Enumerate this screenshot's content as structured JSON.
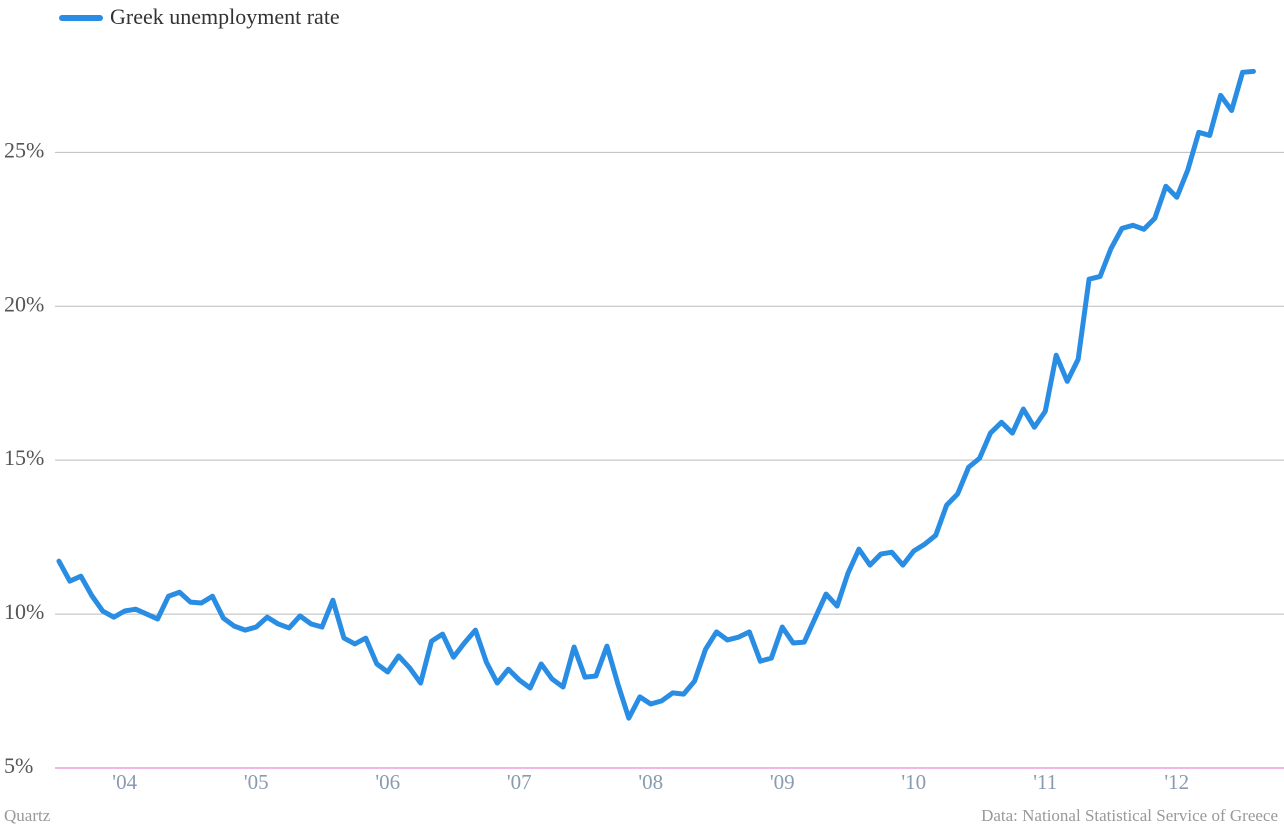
{
  "chart_data": {
    "type": "line",
    "series": [
      {
        "name": "Greek unemployment rate",
        "color": "#2a8de4",
        "values": [
          11.72,
          11.07,
          11.23,
          10.6,
          10.1,
          9.9,
          10.1,
          10.16,
          10.0,
          9.84,
          10.58,
          10.71,
          10.39,
          10.36,
          10.58,
          9.87,
          9.61,
          9.48,
          9.58,
          9.9,
          9.68,
          9.55,
          9.94,
          9.68,
          9.58,
          10.45,
          9.22,
          9.03,
          9.22,
          8.38,
          8.12,
          8.64,
          8.25,
          7.76,
          9.12,
          9.35,
          8.6,
          9.06,
          9.48,
          8.44,
          7.76,
          8.21,
          7.86,
          7.6,
          8.38,
          7.89,
          7.63,
          8.93,
          7.95,
          7.99,
          8.96,
          7.73,
          6.62,
          7.31,
          7.08,
          7.18,
          7.44,
          7.4,
          7.82,
          8.86,
          9.42,
          9.16,
          9.25,
          9.42,
          8.47,
          8.57,
          9.58,
          9.06,
          9.09,
          9.87,
          10.65,
          10.26,
          11.33,
          12.11,
          11.59,
          11.95,
          12.01,
          11.59,
          12.05,
          12.27,
          12.56,
          13.54,
          13.9,
          14.77,
          15.06,
          15.88,
          16.23,
          15.88,
          16.66,
          16.07,
          16.59,
          18.41,
          17.56,
          18.28,
          20.88,
          20.97,
          21.88,
          22.53,
          22.63,
          22.5,
          22.86,
          23.9,
          23.54,
          24.42,
          25.65,
          25.55,
          26.85,
          26.36,
          27.6,
          27.63
        ]
      }
    ],
    "x": [
      2004,
      2004.083,
      2004.167,
      2004.25,
      2004.333,
      2004.417,
      2004.5,
      2004.583,
      2004.667,
      2004.75,
      2004.833,
      2004.917,
      2005,
      2005.083,
      2005.167,
      2005.25,
      2005.333,
      2005.417,
      2005.5,
      2005.583,
      2005.667,
      2005.75,
      2005.833,
      2005.917,
      2006,
      2006.083,
      2006.167,
      2006.25,
      2006.333,
      2006.417,
      2006.5,
      2006.583,
      2006.667,
      2006.75,
      2006.833,
      2006.917,
      2007,
      2007.083,
      2007.167,
      2007.25,
      2007.333,
      2007.417,
      2007.5,
      2007.583,
      2007.667,
      2007.75,
      2007.833,
      2007.917,
      2008,
      2008.083,
      2008.167,
      2008.25,
      2008.333,
      2008.417,
      2008.5,
      2008.583,
      2008.667,
      2008.75,
      2008.833,
      2008.917,
      2009,
      2009.083,
      2009.167,
      2009.25,
      2009.333,
      2009.417,
      2009.5,
      2009.583,
      2009.667,
      2009.75,
      2009.833,
      2009.917,
      2010,
      2010.083,
      2010.167,
      2010.25,
      2010.333,
      2010.417,
      2010.5,
      2010.583,
      2010.667,
      2010.75,
      2010.833,
      2010.917,
      2011,
      2011.083,
      2011.167,
      2011.25,
      2011.333,
      2011.417,
      2011.5,
      2011.583,
      2011.667,
      2011.75,
      2011.833,
      2011.917,
      2012,
      2012.083,
      2012.167,
      2012.25,
      2012.333,
      2012.417,
      2012.5,
      2012.583,
      2012.667,
      2012.75,
      2012.833,
      2012.917,
      2013,
      2013.083
    ],
    "xlim": [
      2003.97,
      2013.3
    ],
    "xticks": [
      {
        "value": 2004,
        "label": "'04"
      },
      {
        "value": 2005,
        "label": "'05"
      },
      {
        "value": 2006,
        "label": "'06"
      },
      {
        "value": 2007,
        "label": "'07"
      },
      {
        "value": 2008,
        "label": "'08"
      },
      {
        "value": 2009,
        "label": "'09"
      },
      {
        "value": 2010,
        "label": "'10"
      },
      {
        "value": 2011,
        "label": "'11"
      },
      {
        "value": 2012,
        "label": "'12"
      }
    ],
    "ylim": [
      5,
      28
    ],
    "yticks": [
      {
        "value": 5,
        "label": "5%"
      },
      {
        "value": 10,
        "label": "10%"
      },
      {
        "value": 15,
        "label": "15%"
      },
      {
        "value": 20,
        "label": "20%"
      },
      {
        "value": 25,
        "label": "25%"
      }
    ],
    "grid": true,
    "credit": "Quartz",
    "source": "Data: National Statistical Service of Greece"
  }
}
